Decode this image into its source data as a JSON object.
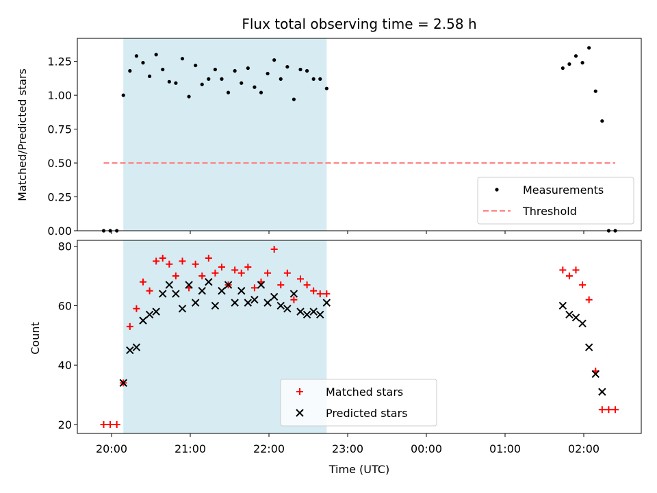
{
  "chart_data": {
    "type": "scatter",
    "title": "Flux total observing time = 2.58 h",
    "xlabel": "Time (UTC)",
    "x_tick_labels": [
      "20:00",
      "21:00",
      "22:00",
      "23:00",
      "00:00",
      "01:00",
      "02:00"
    ],
    "shaded_interval": {
      "start": "20:09",
      "end": "22:44",
      "color": "#add8e6"
    },
    "panels": [
      {
        "id": "ratio",
        "ylabel": "Matched/Predicted stars",
        "ylim": [
          0,
          1.42
        ],
        "y_ticks": [
          "0.00",
          "0.25",
          "0.50",
          "0.75",
          "1.00",
          "1.25"
        ],
        "series": [
          {
            "name": "Measurements",
            "style": "dot",
            "color": "#000000",
            "points": [
              [
                "19:54",
                0.0
              ],
              [
                "19:59",
                0.0
              ],
              [
                "20:04",
                0.0
              ],
              [
                "20:09",
                1.0
              ],
              [
                "20:14",
                1.18
              ],
              [
                "20:19",
                1.29
              ],
              [
                "20:24",
                1.24
              ],
              [
                "20:29",
                1.14
              ],
              [
                "20:34",
                1.3
              ],
              [
                "20:39",
                1.19
              ],
              [
                "20:44",
                1.1
              ],
              [
                "20:49",
                1.09
              ],
              [
                "20:54",
                1.27
              ],
              [
                "20:59",
                0.99
              ],
              [
                "21:04",
                1.22
              ],
              [
                "21:09",
                1.08
              ],
              [
                "21:14",
                1.12
              ],
              [
                "21:19",
                1.19
              ],
              [
                "21:24",
                1.12
              ],
              [
                "21:29",
                1.02
              ],
              [
                "21:34",
                1.18
              ],
              [
                "21:39",
                1.09
              ],
              [
                "21:44",
                1.2
              ],
              [
                "21:49",
                1.06
              ],
              [
                "21:54",
                1.02
              ],
              [
                "21:59",
                1.16
              ],
              [
                "22:04",
                1.26
              ],
              [
                "22:09",
                1.12
              ],
              [
                "22:14",
                1.21
              ],
              [
                "22:19",
                0.97
              ],
              [
                "22:24",
                1.19
              ],
              [
                "22:29",
                1.18
              ],
              [
                "22:34",
                1.12
              ],
              [
                "22:39",
                1.12
              ],
              [
                "22:44",
                1.05
              ],
              [
                "01:44",
                1.2
              ],
              [
                "01:49",
                1.23
              ],
              [
                "01:54",
                1.29
              ],
              [
                "01:59",
                1.24
              ],
              [
                "02:04",
                1.35
              ],
              [
                "02:09",
                1.03
              ],
              [
                "02:14",
                0.81
              ],
              [
                "02:19",
                0.0
              ],
              [
                "02:24",
                0.0
              ]
            ]
          },
          {
            "name": "Threshold",
            "style": "dashed-line",
            "color": "#ff7f7f",
            "points": [
              [
                "19:54",
                0.5
              ],
              [
                "02:24",
                0.5
              ]
            ]
          }
        ],
        "legend": "bottom-right"
      },
      {
        "id": "counts",
        "ylabel": "Count",
        "ylim": [
          17,
          82
        ],
        "y_ticks": [
          "20",
          "40",
          "60",
          "80"
        ],
        "series": [
          {
            "name": "Matched stars",
            "style": "plus",
            "color": "#ff0000",
            "points": [
              [
                "19:54",
                20
              ],
              [
                "19:59",
                20
              ],
              [
                "20:04",
                20
              ],
              [
                "20:09",
                34
              ],
              [
                "20:14",
                53
              ],
              [
                "20:19",
                59
              ],
              [
                "20:24",
                68
              ],
              [
                "20:29",
                65
              ],
              [
                "20:34",
                75
              ],
              [
                "20:39",
                76
              ],
              [
                "20:44",
                74
              ],
              [
                "20:49",
                70
              ],
              [
                "20:54",
                75
              ],
              [
                "20:59",
                66
              ],
              [
                "21:04",
                74
              ],
              [
                "21:09",
                70
              ],
              [
                "21:14",
                76
              ],
              [
                "21:19",
                71
              ],
              [
                "21:24",
                73
              ],
              [
                "21:29",
                67
              ],
              [
                "21:34",
                72
              ],
              [
                "21:39",
                71
              ],
              [
                "21:44",
                73
              ],
              [
                "21:49",
                66
              ],
              [
                "21:54",
                68
              ],
              [
                "21:59",
                71
              ],
              [
                "22:04",
                79
              ],
              [
                "22:09",
                67
              ],
              [
                "22:14",
                71
              ],
              [
                "22:19",
                62
              ],
              [
                "22:24",
                69
              ],
              [
                "22:29",
                67
              ],
              [
                "22:34",
                65
              ],
              [
                "22:39",
                64
              ],
              [
                "22:44",
                64
              ],
              [
                "01:44",
                72
              ],
              [
                "01:49",
                70
              ],
              [
                "01:54",
                72
              ],
              [
                "01:59",
                67
              ],
              [
                "02:04",
                62
              ],
              [
                "02:09",
                38
              ],
              [
                "02:14",
                25
              ],
              [
                "02:19",
                25
              ],
              [
                "02:24",
                25
              ]
            ]
          },
          {
            "name": "Predicted stars",
            "style": "x",
            "color": "#000000",
            "points": [
              [
                "20:09",
                34
              ],
              [
                "20:14",
                45
              ],
              [
                "20:19",
                46
              ],
              [
                "20:24",
                55
              ],
              [
                "20:29",
                57
              ],
              [
                "20:34",
                58
              ],
              [
                "20:39",
                64
              ],
              [
                "20:44",
                67
              ],
              [
                "20:49",
                64
              ],
              [
                "20:54",
                59
              ],
              [
                "20:59",
                67
              ],
              [
                "21:04",
                61
              ],
              [
                "21:09",
                65
              ],
              [
                "21:14",
                68
              ],
              [
                "21:19",
                60
              ],
              [
                "21:24",
                65
              ],
              [
                "21:29",
                67
              ],
              [
                "21:34",
                61
              ],
              [
                "21:39",
                65
              ],
              [
                "21:44",
                61
              ],
              [
                "21:49",
                62
              ],
              [
                "21:54",
                67
              ],
              [
                "21:59",
                61
              ],
              [
                "22:04",
                63
              ],
              [
                "22:09",
                60
              ],
              [
                "22:14",
                59
              ],
              [
                "22:19",
                64
              ],
              [
                "22:24",
                58
              ],
              [
                "22:29",
                57
              ],
              [
                "22:34",
                58
              ],
              [
                "22:39",
                57
              ],
              [
                "22:44",
                61
              ],
              [
                "01:44",
                60
              ],
              [
                "01:49",
                57
              ],
              [
                "01:54",
                56
              ],
              [
                "01:59",
                54
              ],
              [
                "02:04",
                46
              ],
              [
                "02:09",
                37
              ],
              [
                "02:14",
                31
              ]
            ]
          }
        ],
        "legend": "bottom-center"
      }
    ]
  }
}
